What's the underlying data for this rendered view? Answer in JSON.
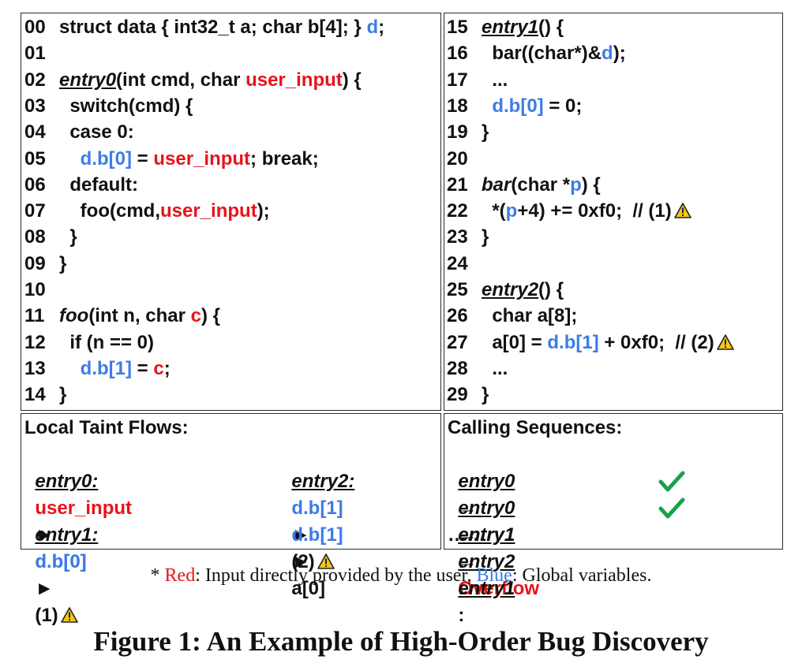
{
  "code_left": [
    {
      "num": "00",
      "segments": [
        {
          "t": "struct data { int32_t a; char b[4]; } "
        },
        {
          "t": "d",
          "c": "blue"
        },
        {
          "t": ";"
        }
      ]
    },
    {
      "num": "01",
      "segments": []
    },
    {
      "num": "02",
      "segments": [
        {
          "t": "entry0",
          "c": "iu"
        },
        {
          "t": "(int cmd, char "
        },
        {
          "t": "user_input",
          "c": "red"
        },
        {
          "t": ") {"
        }
      ]
    },
    {
      "num": "03",
      "segments": [
        {
          "t": "  switch(cmd) {"
        }
      ]
    },
    {
      "num": "04",
      "segments": [
        {
          "t": "  case 0:"
        }
      ]
    },
    {
      "num": "05",
      "segments": [
        {
          "t": "    "
        },
        {
          "t": "d.b[0]",
          "c": "blue"
        },
        {
          "t": " = "
        },
        {
          "t": "user_input",
          "c": "red"
        },
        {
          "t": "; break;"
        }
      ]
    },
    {
      "num": "06",
      "segments": [
        {
          "t": "  default:"
        }
      ]
    },
    {
      "num": "07",
      "segments": [
        {
          "t": "    foo(cmd,"
        },
        {
          "t": "user_input",
          "c": "red"
        },
        {
          "t": ");"
        }
      ]
    },
    {
      "num": "08",
      "segments": [
        {
          "t": "  }"
        }
      ]
    },
    {
      "num": "09",
      "segments": [
        {
          "t": "}"
        }
      ]
    },
    {
      "num": "10",
      "segments": []
    },
    {
      "num": "11",
      "segments": [
        {
          "t": "foo",
          "c": "i"
        },
        {
          "t": "(int n, char "
        },
        {
          "t": "c",
          "c": "red"
        },
        {
          "t": ") {"
        }
      ]
    },
    {
      "num": "12",
      "segments": [
        {
          "t": "  if (n == 0)"
        }
      ]
    },
    {
      "num": "13",
      "segments": [
        {
          "t": "    "
        },
        {
          "t": "d.b[1]",
          "c": "blue"
        },
        {
          "t": " = "
        },
        {
          "t": "c",
          "c": "red"
        },
        {
          "t": ";"
        }
      ]
    },
    {
      "num": "14",
      "segments": [
        {
          "t": "}"
        }
      ]
    }
  ],
  "code_right": [
    {
      "num": "15",
      "segments": [
        {
          "t": "entry1",
          "c": "iu"
        },
        {
          "t": "() {"
        }
      ]
    },
    {
      "num": "16",
      "segments": [
        {
          "t": "  bar((char*)&"
        },
        {
          "t": "d",
          "c": "blue"
        },
        {
          "t": ");"
        }
      ]
    },
    {
      "num": "17",
      "segments": [
        {
          "t": "  ..."
        }
      ]
    },
    {
      "num": "18",
      "segments": [
        {
          "t": "  "
        },
        {
          "t": "d.b[0]",
          "c": "blue"
        },
        {
          "t": " = 0;"
        }
      ]
    },
    {
      "num": "19",
      "segments": [
        {
          "t": "}"
        }
      ]
    },
    {
      "num": "20",
      "segments": []
    },
    {
      "num": "21",
      "segments": [
        {
          "t": "bar",
          "c": "i"
        },
        {
          "t": "(char *"
        },
        {
          "t": "p",
          "c": "blue"
        },
        {
          "t": ") {"
        }
      ]
    },
    {
      "num": "22",
      "segments": [
        {
          "t": "  *("
        },
        {
          "t": "p",
          "c": "blue"
        },
        {
          "t": "+4) += 0xf0;  // (1)"
        }
      ],
      "warn": true
    },
    {
      "num": "23",
      "segments": [
        {
          "t": "}"
        }
      ]
    },
    {
      "num": "24",
      "segments": []
    },
    {
      "num": "25",
      "segments": [
        {
          "t": "entry2",
          "c": "iu"
        },
        {
          "t": "() {"
        }
      ]
    },
    {
      "num": "26",
      "segments": [
        {
          "t": "  char a[8];"
        }
      ]
    },
    {
      "num": "27",
      "segments": [
        {
          "t": "  a[0] = "
        },
        {
          "t": "d.b[1]",
          "c": "blue"
        },
        {
          "t": " + 0xf0;  // (2)"
        }
      ],
      "warn": true
    },
    {
      "num": "28",
      "segments": [
        {
          "t": "  ..."
        }
      ]
    },
    {
      "num": "29",
      "segments": [
        {
          "t": "}"
        }
      ]
    }
  ],
  "taint": {
    "title": "Local Taint Flows:",
    "entry0_label": "entry0:",
    "entry0_from": "user_input",
    "entry0_to": "d.b[0]",
    "entry1_label": "entry1:",
    "entry1_from": "d.b[0]",
    "entry1_to": "(1)",
    "entry2_label": "entry2:",
    "entry2_flow1_from": "d.b[1]",
    "entry2_flow1_to": "(2)",
    "entry2_flow2_from": "d.b[1]",
    "entry2_flow2_to": "a[0]",
    "arrow": "►"
  },
  "sequences": {
    "title": "Calling Sequences:",
    "arrow": "→",
    "rows": [
      {
        "from": "entry0",
        "to": "entry1",
        "result": "Overflow"
      },
      {
        "from": "entry0",
        "to": "entry2",
        "result": "ok"
      },
      {
        "from": "entry1",
        "to": "entry1",
        "result": "ok"
      }
    ],
    "more": "……"
  },
  "legend": {
    "star": "*",
    "red_word": "Red",
    "red_desc": ": Input directly provided by the user, ",
    "blue_word": "Blue",
    "blue_desc": ": Global variables."
  },
  "caption": "Figure 1: An Example of High-Order Bug Discovery",
  "colors": {
    "red": "#e8131a",
    "blue": "#3d7ce6",
    "green": "#17a24a"
  }
}
